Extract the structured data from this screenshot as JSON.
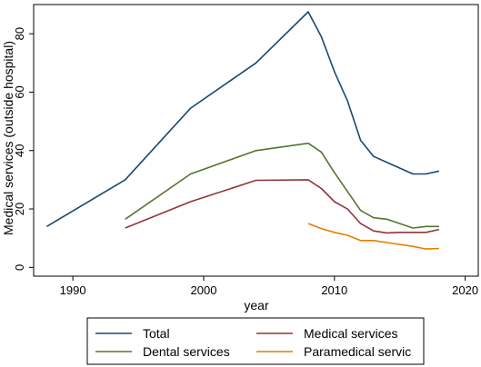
{
  "chart_data": {
    "type": "line",
    "xlabel": "year",
    "ylabel": "Medical services (outside hospital)",
    "xlim": [
      1987,
      2021
    ],
    "ylim": [
      -3,
      90
    ],
    "x_ticks": [
      1990,
      2000,
      2010,
      2020
    ],
    "y_ticks": [
      0,
      20,
      40,
      60,
      80
    ],
    "grid": false,
    "legend_position": "bottom",
    "series": [
      {
        "name": "Total",
        "color": "#1a476f",
        "points": [
          [
            1988,
            14
          ],
          [
            1994,
            30
          ],
          [
            1999,
            54.5
          ],
          [
            2004,
            70
          ],
          [
            2008,
            87.5
          ],
          [
            2009,
            79
          ],
          [
            2010,
            67
          ],
          [
            2011,
            57
          ],
          [
            2012,
            43.5
          ],
          [
            2013,
            38
          ],
          [
            2014,
            36
          ],
          [
            2016,
            32
          ],
          [
            2017,
            32
          ],
          [
            2018,
            33
          ]
        ]
      },
      {
        "name": "Medical services",
        "color": "#90353b",
        "points": [
          [
            1994,
            13.5
          ],
          [
            1999,
            22.5
          ],
          [
            2004,
            29.8
          ],
          [
            2008,
            30
          ],
          [
            2009,
            27
          ],
          [
            2010,
            22.5
          ],
          [
            2011,
            20
          ],
          [
            2012,
            15
          ],
          [
            2013,
            12.5
          ],
          [
            2014,
            11.8
          ],
          [
            2015,
            12
          ],
          [
            2017,
            12
          ],
          [
            2018,
            13
          ]
        ]
      },
      {
        "name": "Dental services",
        "color": "#55752f",
        "points": [
          [
            1994,
            16.5
          ],
          [
            1999,
            32
          ],
          [
            2004,
            40
          ],
          [
            2008,
            42.5
          ],
          [
            2009,
            39.5
          ],
          [
            2010,
            32.5
          ],
          [
            2011,
            26
          ],
          [
            2012,
            19.5
          ],
          [
            2013,
            17
          ],
          [
            2014,
            16.5
          ],
          [
            2016,
            13.5
          ],
          [
            2017,
            14
          ],
          [
            2018,
            14
          ]
        ]
      },
      {
        "name": "Paramedical servic",
        "color": "#e37e00",
        "points": [
          [
            2008,
            15
          ],
          [
            2009,
            13.3
          ],
          [
            2010,
            12
          ],
          [
            2011,
            11
          ],
          [
            2012,
            9.2
          ],
          [
            2013,
            9.2
          ],
          [
            2014,
            8.5
          ],
          [
            2016,
            7.2
          ],
          [
            2017,
            6.3
          ],
          [
            2018,
            6.5
          ]
        ]
      }
    ]
  }
}
